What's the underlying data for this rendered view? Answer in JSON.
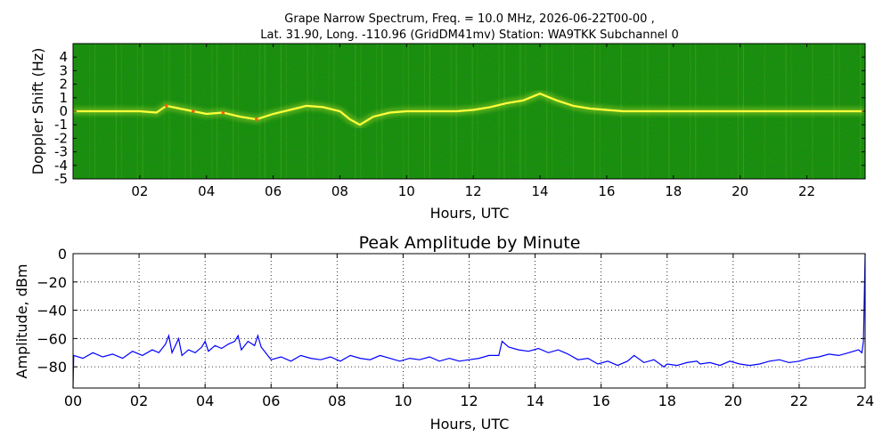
{
  "chart_data": [
    {
      "type": "heatmap",
      "title_line1": "Grape Narrow Spectrum, Freq. = 10.0 MHz, 2026-06-22T00-00 ,",
      "title_line2": "Lat.  31.90, Long. -110.96 (GridDM41mv) Station: WA9TKK Subchannel 0",
      "xlabel": "Hours, UTC",
      "ylabel": "Doppler Shift (Hz)",
      "xlim": [
        0,
        23.75
      ],
      "ylim": [
        -5,
        5
      ],
      "x_ticks": [
        2,
        4,
        6,
        8,
        10,
        12,
        14,
        16,
        18,
        20,
        22
      ],
      "x_tick_labels": [
        "02",
        "04",
        "06",
        "08",
        "10",
        "12",
        "14",
        "16",
        "18",
        "20",
        "22"
      ],
      "y_ticks": [
        4,
        3,
        2,
        1,
        0,
        -1,
        -2,
        -3,
        -4,
        -5
      ],
      "y_tick_labels": [
        "4",
        "3",
        "2",
        "1",
        "0",
        "-1",
        "-2",
        "-3",
        "-4",
        "-5"
      ],
      "colors": {
        "background": "#1e8a12",
        "trace_low": "#c8e632",
        "trace_mid": "#ffff3c",
        "trace_high": "#ff5a14"
      },
      "doppler_trace": {
        "x": [
          0,
          1,
          2,
          2.5,
          2.8,
          3.2,
          3.6,
          4,
          4.5,
          5,
          5.5,
          6,
          6.5,
          7,
          7.5,
          8,
          8.3,
          8.6,
          9,
          9.5,
          10,
          10.5,
          11,
          11.5,
          12,
          12.5,
          13,
          13.5,
          14,
          14.5,
          15,
          15.5,
          16,
          16.5,
          17,
          18,
          19,
          20,
          21,
          22,
          23,
          23.7
        ],
        "y": [
          0,
          0,
          0,
          -0.1,
          0.4,
          0.2,
          0,
          -0.2,
          -0.1,
          -0.4,
          -0.6,
          -0.2,
          0.1,
          0.4,
          0.3,
          0,
          -0.6,
          -1,
          -0.4,
          -0.1,
          0,
          0,
          0,
          0,
          0.1,
          0.3,
          0.6,
          0.8,
          1.3,
          0.8,
          0.4,
          0.2,
          0.1,
          0,
          0,
          0,
          0,
          0,
          0,
          0,
          0,
          0
        ]
      }
    },
    {
      "type": "line",
      "title": "Peak Amplitude by Minute",
      "xlabel": "Hours, UTC",
      "ylabel": "Amplitude, dBm",
      "xlim": [
        0,
        24
      ],
      "ylim": [
        -95,
        0
      ],
      "grid": true,
      "x_ticks": [
        0,
        2,
        4,
        6,
        8,
        10,
        12,
        14,
        16,
        18,
        20,
        22,
        24
      ],
      "x_tick_labels": [
        "00",
        "02",
        "04",
        "06",
        "08",
        "10",
        "12",
        "14",
        "16",
        "18",
        "20",
        "22",
        "24"
      ],
      "y_ticks": [
        0,
        -20,
        -40,
        -60,
        -80
      ],
      "y_tick_labels": [
        "0",
        "−20",
        "−40",
        "−60",
        "−80"
      ],
      "line_color": "#0000ff",
      "series": [
        {
          "x": [
            0,
            0.02,
            0.3,
            0.6,
            0.9,
            1.2,
            1.5,
            1.8,
            2.1,
            2.4,
            2.6,
            2.8,
            2.9,
            3.0,
            3.2,
            3.3,
            3.5,
            3.7,
            3.9,
            4.0,
            4.1,
            4.3,
            4.5,
            4.7,
            4.9,
            5.0,
            5.1,
            5.3,
            5.5,
            5.6,
            5.7,
            5.9,
            6.0,
            6.3,
            6.6,
            6.9,
            7.2,
            7.5,
            7.8,
            8.1,
            8.4,
            8.7,
            9.0,
            9.3,
            9.6,
            9.9,
            10.2,
            10.5,
            10.8,
            11.1,
            11.4,
            11.7,
            12.0,
            12.3,
            12.6,
            12.9,
            13.0,
            13.2,
            13.5,
            13.8,
            14.1,
            14.4,
            14.7,
            15.0,
            15.3,
            15.6,
            15.9,
            16.2,
            16.5,
            16.8,
            17.0,
            17.3,
            17.6,
            17.9,
            18.0,
            18.3,
            18.6,
            18.9,
            19.0,
            19.3,
            19.6,
            19.9,
            20.2,
            20.5,
            20.8,
            21.1,
            21.4,
            21.7,
            22.0,
            22.3,
            22.6,
            22.9,
            23.2,
            23.5,
            23.8,
            23.9,
            23.95,
            24
          ],
          "values": [
            -95,
            -72,
            -74,
            -70,
            -73,
            -71,
            -74,
            -69,
            -72,
            -68,
            -70,
            -64,
            -58,
            -70,
            -60,
            -72,
            -68,
            -70,
            -66,
            -62,
            -69,
            -65,
            -67,
            -64,
            -62,
            -58,
            -68,
            -62,
            -65,
            -58,
            -66,
            -72,
            -75,
            -73,
            -76,
            -72,
            -74,
            -75,
            -73,
            -76,
            -72,
            -74,
            -75,
            -72,
            -74,
            -76,
            -74,
            -75,
            -73,
            -76,
            -74,
            -76,
            -75,
            -74,
            -72,
            -72,
            -62,
            -66,
            -68,
            -69,
            -67,
            -70,
            -68,
            -71,
            -75,
            -74,
            -78,
            -76,
            -79,
            -76,
            -72,
            -77,
            -75,
            -80,
            -78,
            -79,
            -77,
            -76,
            -78,
            -77,
            -79,
            -76,
            -78,
            -79,
            -78,
            -76,
            -75,
            -77,
            -76,
            -74,
            -73,
            -71,
            -72,
            -70,
            -68,
            -70,
            -62,
            0
          ]
        }
      ]
    }
  ]
}
